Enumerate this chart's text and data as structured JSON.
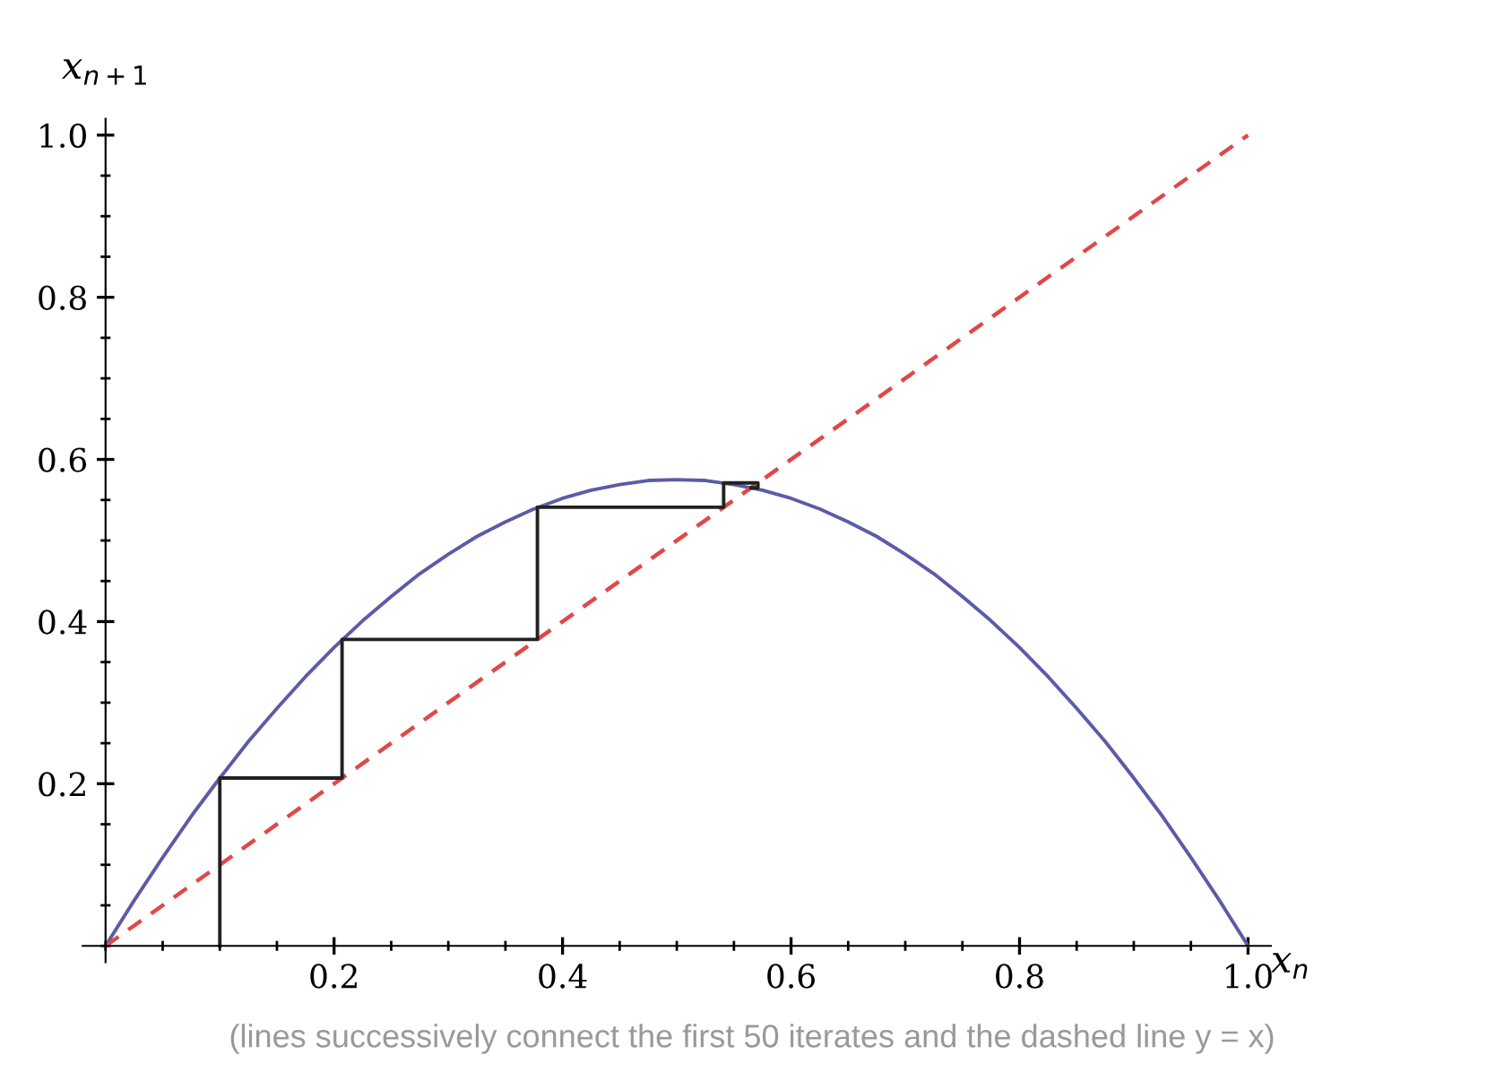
{
  "chart_data": {
    "type": "line",
    "xlabel": "x$_{n}$",
    "ylabel": "x$_{n+1}$",
    "xlim": [
      -0.02,
      1.02
    ],
    "ylim": [
      -0.02,
      1.02
    ],
    "xticks": [
      0.2,
      0.4,
      0.6,
      0.8,
      {
        "value": 1,
        "label": "1.0"
      }
    ],
    "yticks": [
      0.2,
      0.4,
      0.6,
      0.8,
      {
        "value": 1,
        "label": "1.0"
      }
    ],
    "marker": "none",
    "annotations": [
      "(lines successively connect the first 50 iterates and the dashed line y = x)"
    ],
    "series": [
      {
        "color": "#5b5ba8",
        "line_style": "solid",
        "x": [
          0,
          0.025,
          0.05,
          0.075,
          0.1,
          0.125,
          0.15,
          0.175,
          0.2,
          0.225,
          0.25,
          0.275,
          0.3,
          0.325,
          0.35,
          0.375,
          0.4,
          0.425,
          0.45,
          0.475,
          0.5,
          0.525,
          0.55,
          0.575,
          0.6,
          0.625,
          0.65,
          0.675,
          0.7,
          0.725,
          0.75,
          0.775,
          0.8,
          0.825,
          0.85,
          0.875,
          0.9,
          0.925,
          0.95,
          0.975,
          1.0
        ],
        "values": [
          0,
          0.056,
          0.109,
          0.16,
          0.207,
          0.252,
          0.293,
          0.332,
          0.368,
          0.401,
          0.431,
          0.459,
          0.483,
          0.505,
          0.523,
          0.539,
          0.552,
          0.562,
          0.569,
          0.574,
          0.575,
          0.574,
          0.569,
          0.562,
          0.552,
          0.539,
          0.523,
          0.505,
          0.483,
          0.459,
          0.431,
          0.401,
          0.368,
          0.332,
          0.293,
          0.252,
          0.207,
          0.16,
          0.109,
          0.056,
          0
        ]
      },
      {
        "color": "#e04848",
        "line_style": "dashed",
        "x": [
          0,
          1.0
        ],
        "values": [
          0,
          1.0
        ]
      },
      {
        "color": "#222222",
        "line_style": "solid",
        "x": [
          0.1,
          0.1,
          0.207,
          0.207,
          0.378,
          0.378,
          0.541,
          0.541,
          0.571,
          0.571,
          0.565
        ],
        "values": [
          0,
          0.207,
          0.207,
          0.378,
          0.378,
          0.541,
          0.541,
          0.571,
          0.571,
          0.565,
          0.565
        ]
      }
    ]
  }
}
